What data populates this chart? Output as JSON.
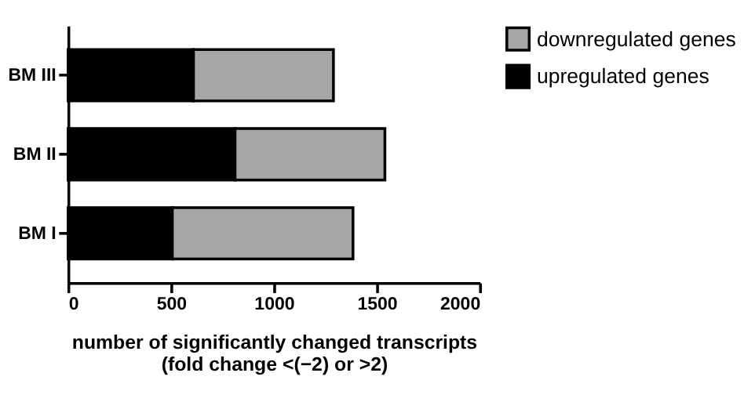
{
  "chart_data": {
    "type": "bar",
    "orientation": "horizontal",
    "stacked": true,
    "categories": [
      "BM III",
      "BM II",
      "BM I"
    ],
    "series": [
      {
        "name": "upregulated genes",
        "color": "#000000",
        "values": [
          609,
          811,
          506
        ]
      },
      {
        "name": "downregulated genes",
        "color": "#a6a6a6",
        "values": [
          680,
          728,
          878
        ]
      }
    ],
    "xlim": [
      0,
      2000
    ],
    "xticks": [
      0,
      500,
      1000,
      1500,
      2000
    ],
    "xlabel": "number of significantly changed transcripts\n(fold change <(−2) or >2)",
    "legend": "right",
    "grid": false
  }
}
